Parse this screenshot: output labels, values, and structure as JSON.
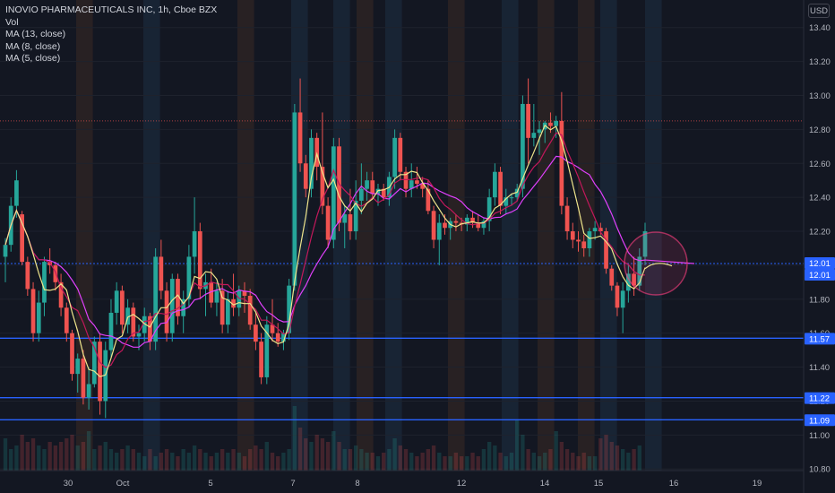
{
  "legend": {
    "title": "INOVIO PHARMACEUTICALS INC, 1h, Cboe BZX",
    "vol": "Vol",
    "ma13": "MA (13, close)",
    "ma8": "MA (8, close)",
    "ma5": "MA (5, close)"
  },
  "currency": "USD",
  "colors": {
    "background": "#131722",
    "up": "#26a69a",
    "down": "#ef5350",
    "ma13": "#e040fb",
    "ma8": "#c2185b",
    "ma5": "#f0e68c",
    "hline": "#2962ff",
    "circle": "#ff4081"
  },
  "chart_data": {
    "type": "candlestick",
    "ylim": [
      10.78,
      13.52
    ],
    "y_ticks": [
      "13.40",
      "13.20",
      "13.00",
      "12.80",
      "12.60",
      "12.40",
      "12.20",
      "12.00",
      "11.80",
      "11.60",
      "11.40",
      "11.20",
      "11.00",
      "10.80"
    ],
    "x_ticks": [
      "30",
      "Oct",
      "5",
      "7",
      "8",
      "12",
      "14",
      "15",
      "16",
      "19"
    ],
    "horizontal_lines": [
      12.01,
      11.57,
      11.22,
      11.09
    ],
    "price_labels": [
      "12.01",
      "12.01",
      "11.57",
      "11.22",
      "11.09"
    ],
    "candles": [
      [
        12.05,
        12.16,
        11.9,
        12.12
      ],
      [
        12.12,
        12.4,
        12.08,
        12.35
      ],
      [
        12.35,
        12.56,
        12.28,
        12.5
      ],
      [
        12.3,
        12.32,
        12.0,
        12.02
      ],
      [
        12.02,
        12.05,
        11.82,
        11.86
      ],
      [
        11.86,
        11.9,
        11.55,
        11.6
      ],
      [
        11.6,
        11.85,
        11.55,
        11.78
      ],
      [
        11.78,
        12.05,
        11.7,
        12.02
      ],
      [
        12.02,
        12.1,
        11.95,
        12.0
      ],
      [
        12.0,
        12.02,
        11.85,
        11.9
      ],
      [
        11.9,
        11.95,
        11.7,
        11.75
      ],
      [
        11.75,
        11.78,
        11.55,
        11.6
      ],
      [
        11.6,
        11.62,
        11.32,
        11.36
      ],
      [
        11.36,
        11.48,
        11.25,
        11.45
      ],
      [
        11.45,
        11.5,
        11.18,
        11.22
      ],
      [
        11.22,
        11.4,
        11.15,
        11.3
      ],
      [
        11.3,
        11.58,
        11.28,
        11.55
      ],
      [
        11.55,
        11.6,
        11.12,
        11.2
      ],
      [
        11.2,
        11.55,
        11.1,
        11.5
      ],
      [
        11.5,
        11.8,
        11.45,
        11.72
      ],
      [
        11.72,
        11.9,
        11.65,
        11.85
      ],
      [
        11.85,
        11.88,
        11.6,
        11.65
      ],
      [
        11.65,
        11.8,
        11.6,
        11.75
      ],
      [
        11.75,
        11.78,
        11.55,
        11.58
      ],
      [
        11.58,
        11.65,
        11.5,
        11.6
      ],
      [
        11.6,
        11.75,
        11.55,
        11.7
      ],
      [
        11.7,
        11.72,
        11.5,
        11.55
      ],
      [
        11.55,
        12.1,
        11.5,
        12.05
      ],
      [
        12.05,
        12.15,
        11.8,
        11.85
      ],
      [
        11.85,
        11.9,
        11.55,
        11.6
      ],
      [
        11.6,
        11.95,
        11.55,
        11.92
      ],
      [
        11.92,
        11.95,
        11.65,
        11.7
      ],
      [
        11.7,
        11.85,
        11.6,
        11.8
      ],
      [
        11.8,
        12.12,
        11.75,
        12.05
      ],
      [
        12.05,
        12.4,
        11.95,
        12.2
      ],
      [
        12.2,
        12.25,
        11.8,
        11.86
      ],
      [
        11.86,
        11.95,
        11.7,
        11.9
      ],
      [
        11.9,
        11.98,
        11.75,
        11.78
      ],
      [
        11.78,
        11.9,
        11.7,
        11.85
      ],
      [
        11.85,
        11.92,
        11.6,
        11.65
      ],
      [
        11.65,
        11.85,
        11.6,
        11.8
      ],
      [
        11.8,
        11.95,
        11.7,
        11.75
      ],
      [
        11.75,
        11.88,
        11.7,
        11.85
      ],
      [
        11.85,
        11.9,
        11.72,
        11.82
      ],
      [
        11.82,
        11.86,
        11.62,
        11.65
      ],
      [
        11.65,
        11.72,
        11.5,
        11.55
      ],
      [
        11.55,
        11.6,
        11.3,
        11.34
      ],
      [
        11.34,
        11.7,
        11.3,
        11.65
      ],
      [
        11.65,
        11.8,
        11.55,
        11.6
      ],
      [
        11.6,
        11.66,
        11.52,
        11.55
      ],
      [
        11.55,
        11.62,
        11.5,
        11.6
      ],
      [
        11.6,
        11.92,
        11.56,
        11.88
      ],
      [
        11.88,
        12.95,
        11.85,
        12.9
      ],
      [
        12.9,
        13.1,
        12.55,
        12.6
      ],
      [
        12.6,
        12.65,
        12.4,
        12.45
      ],
      [
        12.45,
        12.8,
        12.4,
        12.75
      ],
      [
        12.75,
        12.78,
        12.5,
        12.58
      ],
      [
        12.58,
        12.9,
        12.3,
        12.35
      ],
      [
        12.35,
        12.4,
        12.1,
        12.15
      ],
      [
        12.15,
        12.75,
        12.1,
        12.7
      ],
      [
        12.7,
        12.75,
        12.2,
        12.25
      ],
      [
        12.25,
        12.35,
        12.1,
        12.3
      ],
      [
        12.3,
        12.45,
        12.15,
        12.2
      ],
      [
        12.2,
        12.5,
        12.15,
        12.38
      ],
      [
        12.38,
        12.6,
        12.3,
        12.45
      ],
      [
        12.45,
        12.55,
        12.38,
        12.5
      ],
      [
        12.5,
        12.55,
        12.4,
        12.42
      ],
      [
        12.42,
        12.48,
        12.35,
        12.45
      ],
      [
        12.45,
        12.48,
        12.38,
        12.4
      ],
      [
        12.4,
        12.55,
        12.35,
        12.52
      ],
      [
        12.52,
        12.8,
        12.45,
        12.75
      ],
      [
        12.75,
        12.78,
        12.5,
        12.55
      ],
      [
        12.55,
        12.58,
        12.4,
        12.45
      ],
      [
        12.45,
        12.6,
        12.4,
        12.5
      ],
      [
        12.5,
        12.58,
        12.45,
        12.48
      ],
      [
        12.48,
        12.52,
        12.4,
        12.45
      ],
      [
        12.45,
        12.5,
        12.3,
        12.32
      ],
      [
        12.32,
        12.35,
        12.1,
        12.15
      ],
      [
        12.15,
        12.3,
        12.0,
        12.25
      ],
      [
        12.25,
        12.3,
        12.18,
        12.22
      ],
      [
        12.22,
        12.28,
        12.15,
        12.26
      ],
      [
        12.26,
        12.3,
        12.2,
        12.25
      ],
      [
        12.25,
        12.28,
        12.2,
        12.24
      ],
      [
        12.24,
        12.3,
        12.2,
        12.28
      ],
      [
        12.28,
        12.32,
        12.22,
        12.25
      ],
      [
        12.25,
        12.3,
        12.2,
        12.22
      ],
      [
        12.22,
        12.28,
        12.18,
        12.26
      ],
      [
        12.26,
        12.45,
        12.2,
        12.4
      ],
      [
        12.4,
        12.6,
        12.35,
        12.55
      ],
      [
        12.55,
        12.58,
        12.3,
        12.35
      ],
      [
        12.35,
        12.45,
        12.3,
        12.4
      ],
      [
        12.4,
        12.42,
        12.35,
        12.4
      ],
      [
        12.4,
        12.48,
        12.38,
        12.45
      ],
      [
        12.45,
        13.0,
        12.4,
        12.95
      ],
      [
        12.95,
        13.1,
        12.6,
        12.75
      ],
      [
        12.75,
        12.95,
        12.7,
        12.78
      ],
      [
        12.78,
        12.85,
        12.65,
        12.8
      ],
      [
        12.8,
        12.85,
        12.72,
        12.84
      ],
      [
        12.84,
        12.9,
        12.78,
        12.82
      ],
      [
        12.82,
        12.88,
        12.75,
        12.85
      ],
      [
        12.85,
        13.02,
        12.3,
        12.35
      ],
      [
        12.35,
        12.4,
        12.15,
        12.2
      ],
      [
        12.2,
        12.25,
        12.1,
        12.15
      ],
      [
        12.15,
        12.2,
        12.08,
        12.14
      ],
      [
        12.14,
        12.18,
        12.05,
        12.1
      ],
      [
        12.1,
        12.22,
        12.05,
        12.2
      ],
      [
        12.2,
        12.26,
        12.15,
        12.22
      ],
      [
        12.22,
        12.25,
        12.18,
        12.2
      ],
      [
        12.2,
        12.22,
        11.95,
        11.98
      ],
      [
        11.98,
        12.0,
        11.85,
        11.88
      ],
      [
        11.88,
        11.9,
        11.7,
        11.75
      ],
      [
        11.75,
        11.9,
        11.6,
        11.85
      ],
      [
        11.85,
        12.0,
        11.78,
        11.95
      ],
      [
        11.95,
        12.05,
        11.82,
        11.88
      ],
      [
        11.88,
        12.1,
        11.85,
        12.05
      ],
      [
        12.05,
        12.25,
        12.0,
        12.2
      ]
    ],
    "volume": [
      0.45,
      0.3,
      0.35,
      0.5,
      0.4,
      0.45,
      0.35,
      0.3,
      0.4,
      0.35,
      0.4,
      0.45,
      0.5,
      0.35,
      0.4,
      0.55,
      0.3,
      0.35,
      0.4,
      0.3,
      0.25,
      0.3,
      0.35,
      0.3,
      0.25,
      0.2,
      0.3,
      0.2,
      0.25,
      0.3,
      0.25,
      0.2,
      0.3,
      0.25,
      0.35,
      0.3,
      0.25,
      0.2,
      0.25,
      0.3,
      0.25,
      0.3,
      0.25,
      0.2,
      0.3,
      0.35,
      0.3,
      0.4,
      0.25,
      0.2,
      0.25,
      0.3,
      0.9,
      0.6,
      0.45,
      0.4,
      0.5,
      0.45,
      0.4,
      0.55,
      0.4,
      0.3,
      0.3,
      0.35,
      0.3,
      0.25,
      0.25,
      0.2,
      0.25,
      0.3,
      0.45,
      0.35,
      0.3,
      0.25,
      0.2,
      0.25,
      0.3,
      0.35,
      0.25,
      0.2,
      0.2,
      0.25,
      0.2,
      0.2,
      0.25,
      0.2,
      0.3,
      0.4,
      0.35,
      0.25,
      0.2,
      0.25,
      0.7,
      0.5,
      0.3,
      0.25,
      0.2,
      0.25,
      0.3,
      0.55,
      0.4,
      0.3,
      0.25,
      0.2,
      0.25,
      0.2,
      0.2,
      0.45,
      0.5,
      0.4,
      0.35,
      0.3,
      0.25,
      0.3,
      0.35
    ]
  }
}
